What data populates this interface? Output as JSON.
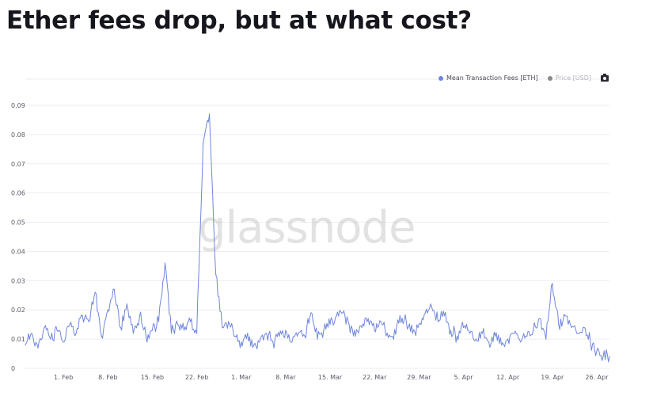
{
  "headline": "Ether fees drop, but at what cost?",
  "legend": {
    "fees_label": "Mean Transaction Fees [ETH]",
    "price_label": "Price [USD]",
    "camera_icon": "camera-icon"
  },
  "watermark": "glassnode",
  "colors": {
    "fees": "#6f86db",
    "price": "#8a8a8a",
    "grid": "#eeeef2",
    "tick": "#5a5a66"
  },
  "chart_data": {
    "type": "line",
    "title": "",
    "xlabel": "",
    "ylabel": "",
    "grid": true,
    "legend_position": "top-right",
    "ylim": [
      0,
      0.09
    ],
    "yticks": [
      0,
      0.01,
      0.02,
      0.03,
      0.04,
      0.05,
      0.06,
      0.07,
      0.08,
      0.09
    ],
    "ytick_labels": [
      "0",
      "0.01",
      "0.02",
      "0.03",
      "0.04",
      "0.05",
      "0.06",
      "0.07",
      "0.08",
      "0.09"
    ],
    "xlim": [
      "2021-01-26",
      "2021-04-28"
    ],
    "xticks": [
      "2021-02-01",
      "2021-02-08",
      "2021-02-15",
      "2021-02-22",
      "2021-03-01",
      "2021-03-08",
      "2021-03-15",
      "2021-03-22",
      "2021-03-29",
      "2021-04-05",
      "2021-04-12",
      "2021-04-19",
      "2021-04-26"
    ],
    "xtick_labels": [
      "1. Feb",
      "8. Feb",
      "15. Feb",
      "22. Feb",
      "1. Mar",
      "8. Mar",
      "15. Mar",
      "22. Mar",
      "29. Mar",
      "5. Apr",
      "12. Apr",
      "19. Apr",
      "26. Apr"
    ],
    "series": [
      {
        "name": "Mean Transaction Fees [ETH]",
        "x": [
          "2021-01-26",
          "2021-01-27",
          "2021-01-28",
          "2021-01-29",
          "2021-01-30",
          "2021-01-31",
          "2021-02-01",
          "2021-02-02",
          "2021-02-03",
          "2021-02-04",
          "2021-02-05",
          "2021-02-06",
          "2021-02-07",
          "2021-02-08",
          "2021-02-09",
          "2021-02-10",
          "2021-02-11",
          "2021-02-12",
          "2021-02-13",
          "2021-02-14",
          "2021-02-15",
          "2021-02-16",
          "2021-02-17",
          "2021-02-18",
          "2021-02-19",
          "2021-02-20",
          "2021-02-21",
          "2021-02-22",
          "2021-02-23",
          "2021-02-24",
          "2021-02-25",
          "2021-02-26",
          "2021-02-27",
          "2021-02-28",
          "2021-03-01",
          "2021-03-02",
          "2021-03-03",
          "2021-03-04",
          "2021-03-05",
          "2021-03-06",
          "2021-03-07",
          "2021-03-08",
          "2021-03-09",
          "2021-03-10",
          "2021-03-11",
          "2021-03-12",
          "2021-03-13",
          "2021-03-14",
          "2021-03-15",
          "2021-03-16",
          "2021-03-17",
          "2021-03-18",
          "2021-03-19",
          "2021-03-20",
          "2021-03-21",
          "2021-03-22",
          "2021-03-23",
          "2021-03-24",
          "2021-03-25",
          "2021-03-26",
          "2021-03-27",
          "2021-03-28",
          "2021-03-29",
          "2021-03-30",
          "2021-03-31",
          "2021-04-01",
          "2021-04-02",
          "2021-04-03",
          "2021-04-04",
          "2021-04-05",
          "2021-04-06",
          "2021-04-07",
          "2021-04-08",
          "2021-04-09",
          "2021-04-10",
          "2021-04-11",
          "2021-04-12",
          "2021-04-13",
          "2021-04-14",
          "2021-04-15",
          "2021-04-16",
          "2021-04-17",
          "2021-04-18",
          "2021-04-19",
          "2021-04-20",
          "2021-04-21",
          "2021-04-22",
          "2021-04-23",
          "2021-04-24",
          "2021-04-25",
          "2021-04-26",
          "2021-04-27",
          "2021-04-28"
        ],
        "y": [
          0.008,
          0.012,
          0.007,
          0.014,
          0.01,
          0.013,
          0.009,
          0.015,
          0.012,
          0.018,
          0.016,
          0.026,
          0.011,
          0.02,
          0.027,
          0.014,
          0.022,
          0.012,
          0.018,
          0.011,
          0.013,
          0.016,
          0.036,
          0.012,
          0.015,
          0.013,
          0.016,
          0.012,
          0.077,
          0.087,
          0.032,
          0.014,
          0.016,
          0.011,
          0.009,
          0.012,
          0.008,
          0.01,
          0.012,
          0.009,
          0.011,
          0.013,
          0.009,
          0.012,
          0.011,
          0.019,
          0.01,
          0.013,
          0.015,
          0.018,
          0.019,
          0.015,
          0.011,
          0.014,
          0.017,
          0.013,
          0.016,
          0.012,
          0.01,
          0.018,
          0.016,
          0.012,
          0.015,
          0.019,
          0.021,
          0.016,
          0.018,
          0.013,
          0.011,
          0.014,
          0.012,
          0.01,
          0.012,
          0.009,
          0.011,
          0.008,
          0.01,
          0.012,
          0.009,
          0.011,
          0.013,
          0.017,
          0.01,
          0.029,
          0.015,
          0.018,
          0.014,
          0.012,
          0.014,
          0.009,
          0.006,
          0.004,
          0.004
        ]
      }
    ]
  }
}
